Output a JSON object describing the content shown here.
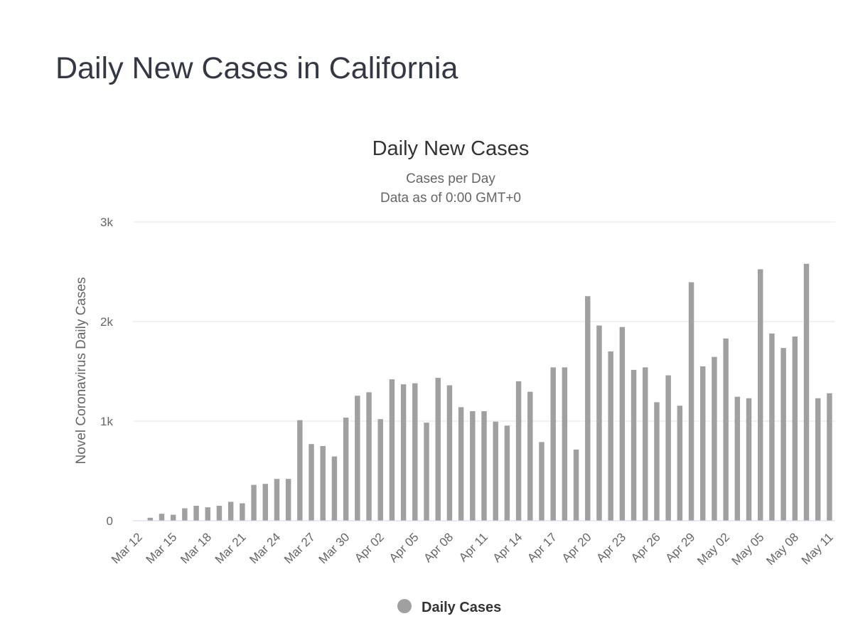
{
  "page": {
    "title": "Daily New Cases in California"
  },
  "chart_data": {
    "type": "bar",
    "title": "Daily New Cases",
    "subtitle": [
      "Cases per Day",
      "Data as of 0:00 GMT+0"
    ],
    "ylabel": "Novel Coronavirus Daily Cases",
    "xlabel": "",
    "ylim": [
      0,
      3000
    ],
    "y_ticks": [
      0,
      1000,
      2000,
      3000
    ],
    "y_tick_labels": [
      "0",
      "1k",
      "2k",
      "3k"
    ],
    "grid": true,
    "legend": "bottom-center",
    "categories": [
      "Mar 12",
      "Mar 13",
      "Mar 14",
      "Mar 15",
      "Mar 16",
      "Mar 17",
      "Mar 18",
      "Mar 19",
      "Mar 20",
      "Mar 21",
      "Mar 22",
      "Mar 23",
      "Mar 24",
      "Mar 25",
      "Mar 26",
      "Mar 27",
      "Mar 28",
      "Mar 29",
      "Mar 30",
      "Mar 31",
      "Apr 01",
      "Apr 02",
      "Apr 03",
      "Apr 04",
      "Apr 05",
      "Apr 06",
      "Apr 07",
      "Apr 08",
      "Apr 09",
      "Apr 10",
      "Apr 11",
      "Apr 12",
      "Apr 13",
      "Apr 14",
      "Apr 15",
      "Apr 16",
      "Apr 17",
      "Apr 18",
      "Apr 19",
      "Apr 20",
      "Apr 21",
      "Apr 22",
      "Apr 23",
      "Apr 24",
      "Apr 25",
      "Apr 26",
      "Apr 27",
      "Apr 28",
      "Apr 29",
      "Apr 30",
      "May 01",
      "May 02",
      "May 03",
      "May 04",
      "May 05",
      "May 06",
      "May 07",
      "May 08",
      "May 09",
      "May 10",
      "May 11"
    ],
    "tick_labels": [
      "Mar 12",
      "Mar 15",
      "Mar 18",
      "Mar 21",
      "Mar 24",
      "Mar 27",
      "Mar 30",
      "Apr 02",
      "Apr 05",
      "Apr 08",
      "Apr 11",
      "Apr 14",
      "Apr 17",
      "Apr 20",
      "Apr 23",
      "Apr 26",
      "Apr 29",
      "May 02",
      "May 05",
      "May 08",
      "May 11"
    ],
    "series": [
      {
        "name": "Daily Cases",
        "color": "#a0a0a0",
        "values": [
          null,
          30,
          70,
          60,
          125,
          150,
          135,
          150,
          190,
          175,
          360,
          370,
          420,
          420,
          1010,
          770,
          750,
          645,
          1035,
          1255,
          1290,
          1020,
          1420,
          1370,
          1380,
          985,
          1435,
          1360,
          1140,
          1100,
          1100,
          995,
          955,
          1400,
          1295,
          790,
          1540,
          1540,
          715,
          2255,
          1960,
          1700,
          1945,
          1515,
          1540,
          1190,
          1460,
          1155,
          2395,
          1550,
          1645,
          1830,
          1245,
          1230,
          2525,
          1880,
          1735,
          1850,
          2580,
          1230,
          1280
        ]
      }
    ]
  }
}
